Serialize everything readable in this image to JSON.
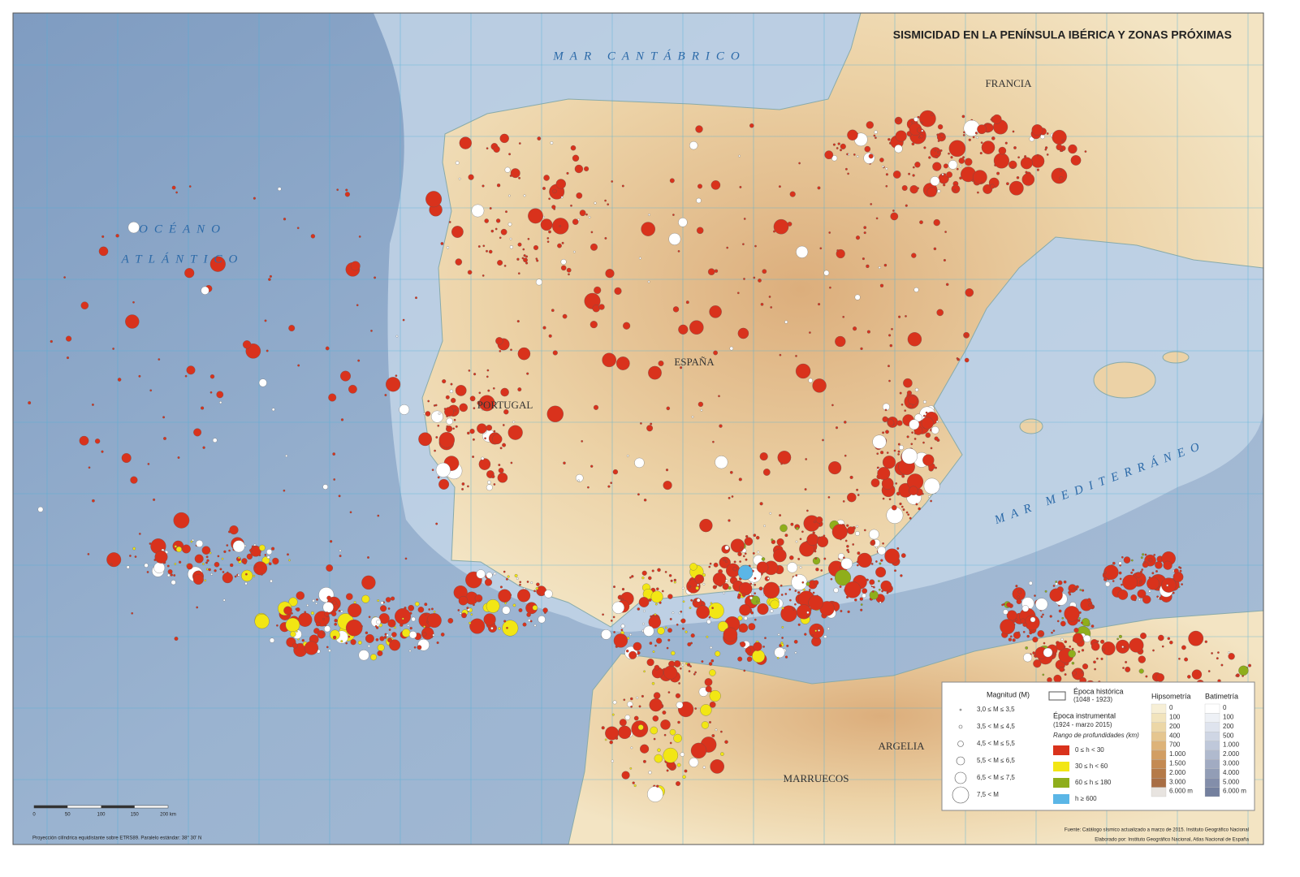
{
  "title": "SISMICIDAD EN LA PENÍNSULA IBÉRICA Y ZONAS PRÓXIMAS",
  "place_labels": {
    "cantabrico": "MAR CANTÁBRICO",
    "francia": "FRANCIA",
    "oceano": "OCÉANO",
    "atlantico": "ATLÁNTICO",
    "espana": "ESPAÑA",
    "portugal": "PORTUGAL",
    "mediterraneo": "MAR MEDITERRÁNEO",
    "argelia": "ARGELIA",
    "marruecos": "MARRUECOS"
  },
  "legend": {
    "magnitude": {
      "title": "Magnitud (M)",
      "classes": [
        "3,0 ≤ M ≤ 3,5",
        "3,5 < M ≤ 4,5",
        "4,5 < M ≤ 5,5",
        "5,5 < M ≤ 6,5",
        "6,5 < M ≤ 7,5",
        "7,5 < M"
      ]
    },
    "historic": {
      "title": "Época histórica",
      "period": "(1048 - 1923)"
    },
    "instrumental": {
      "title": "Época instrumental",
      "period": "(1924 - marzo 2015)",
      "depth_title": "Rango de profundidades (km)",
      "classes": [
        {
          "label": "0 ≤ h < 30",
          "color": "#d9321c"
        },
        {
          "label": "30 ≤ h < 60",
          "color": "#f2e614"
        },
        {
          "label": "60 ≤ h ≤ 180",
          "color": "#8fae1b"
        },
        {
          "label": "h ≥ 600",
          "color": "#5bb6e6"
        }
      ]
    },
    "hypsometry": {
      "title": "Hipsometría",
      "levels": [
        {
          "label": "0",
          "color": "#f7efd6"
        },
        {
          "label": "100",
          "color": "#f2e4bd"
        },
        {
          "label": "200",
          "color": "#ecd7a7"
        },
        {
          "label": "400",
          "color": "#e5c690"
        },
        {
          "label": "700",
          "color": "#ddb379"
        },
        {
          "label": "1.000",
          "color": "#d29e63"
        },
        {
          "label": "1.500",
          "color": "#c48a52"
        },
        {
          "label": "2.000",
          "color": "#b57a48"
        },
        {
          "label": "3.000",
          "color": "#a86e44"
        },
        {
          "label": "6.000 m",
          "color": "#e8e4e0"
        }
      ]
    },
    "bathymetry": {
      "title": "Batimetría",
      "levels": [
        {
          "label": "0",
          "color": "#ffffff"
        },
        {
          "label": "100",
          "color": "#eef1f6"
        },
        {
          "label": "200",
          "color": "#dfe4ee"
        },
        {
          "label": "500",
          "color": "#cfd6e4"
        },
        {
          "label": "1.000",
          "color": "#bfc8da"
        },
        {
          "label": "2.000",
          "color": "#b0bace"
        },
        {
          "label": "3.000",
          "color": "#a1abc2"
        },
        {
          "label": "4.000",
          "color": "#929db6"
        },
        {
          "label": "5.000",
          "color": "#838eaa"
        },
        {
          "label": "6.000 m",
          "color": "#74809e"
        }
      ]
    }
  },
  "scale": [
    "0",
    "50",
    "100",
    "150",
    "200 km"
  ],
  "projection": "Proyección cilíndrica equidistante sobre ETRS89. Paralelo estándar: 38° 30' N",
  "source": "Fuente: Catálogo sísmico actualizado a marzo de 2015. Instituto Geográfico Nacional",
  "credits": "Elaborado por: Instituto Geográfico Nacional, Atlas Nacional de España"
}
